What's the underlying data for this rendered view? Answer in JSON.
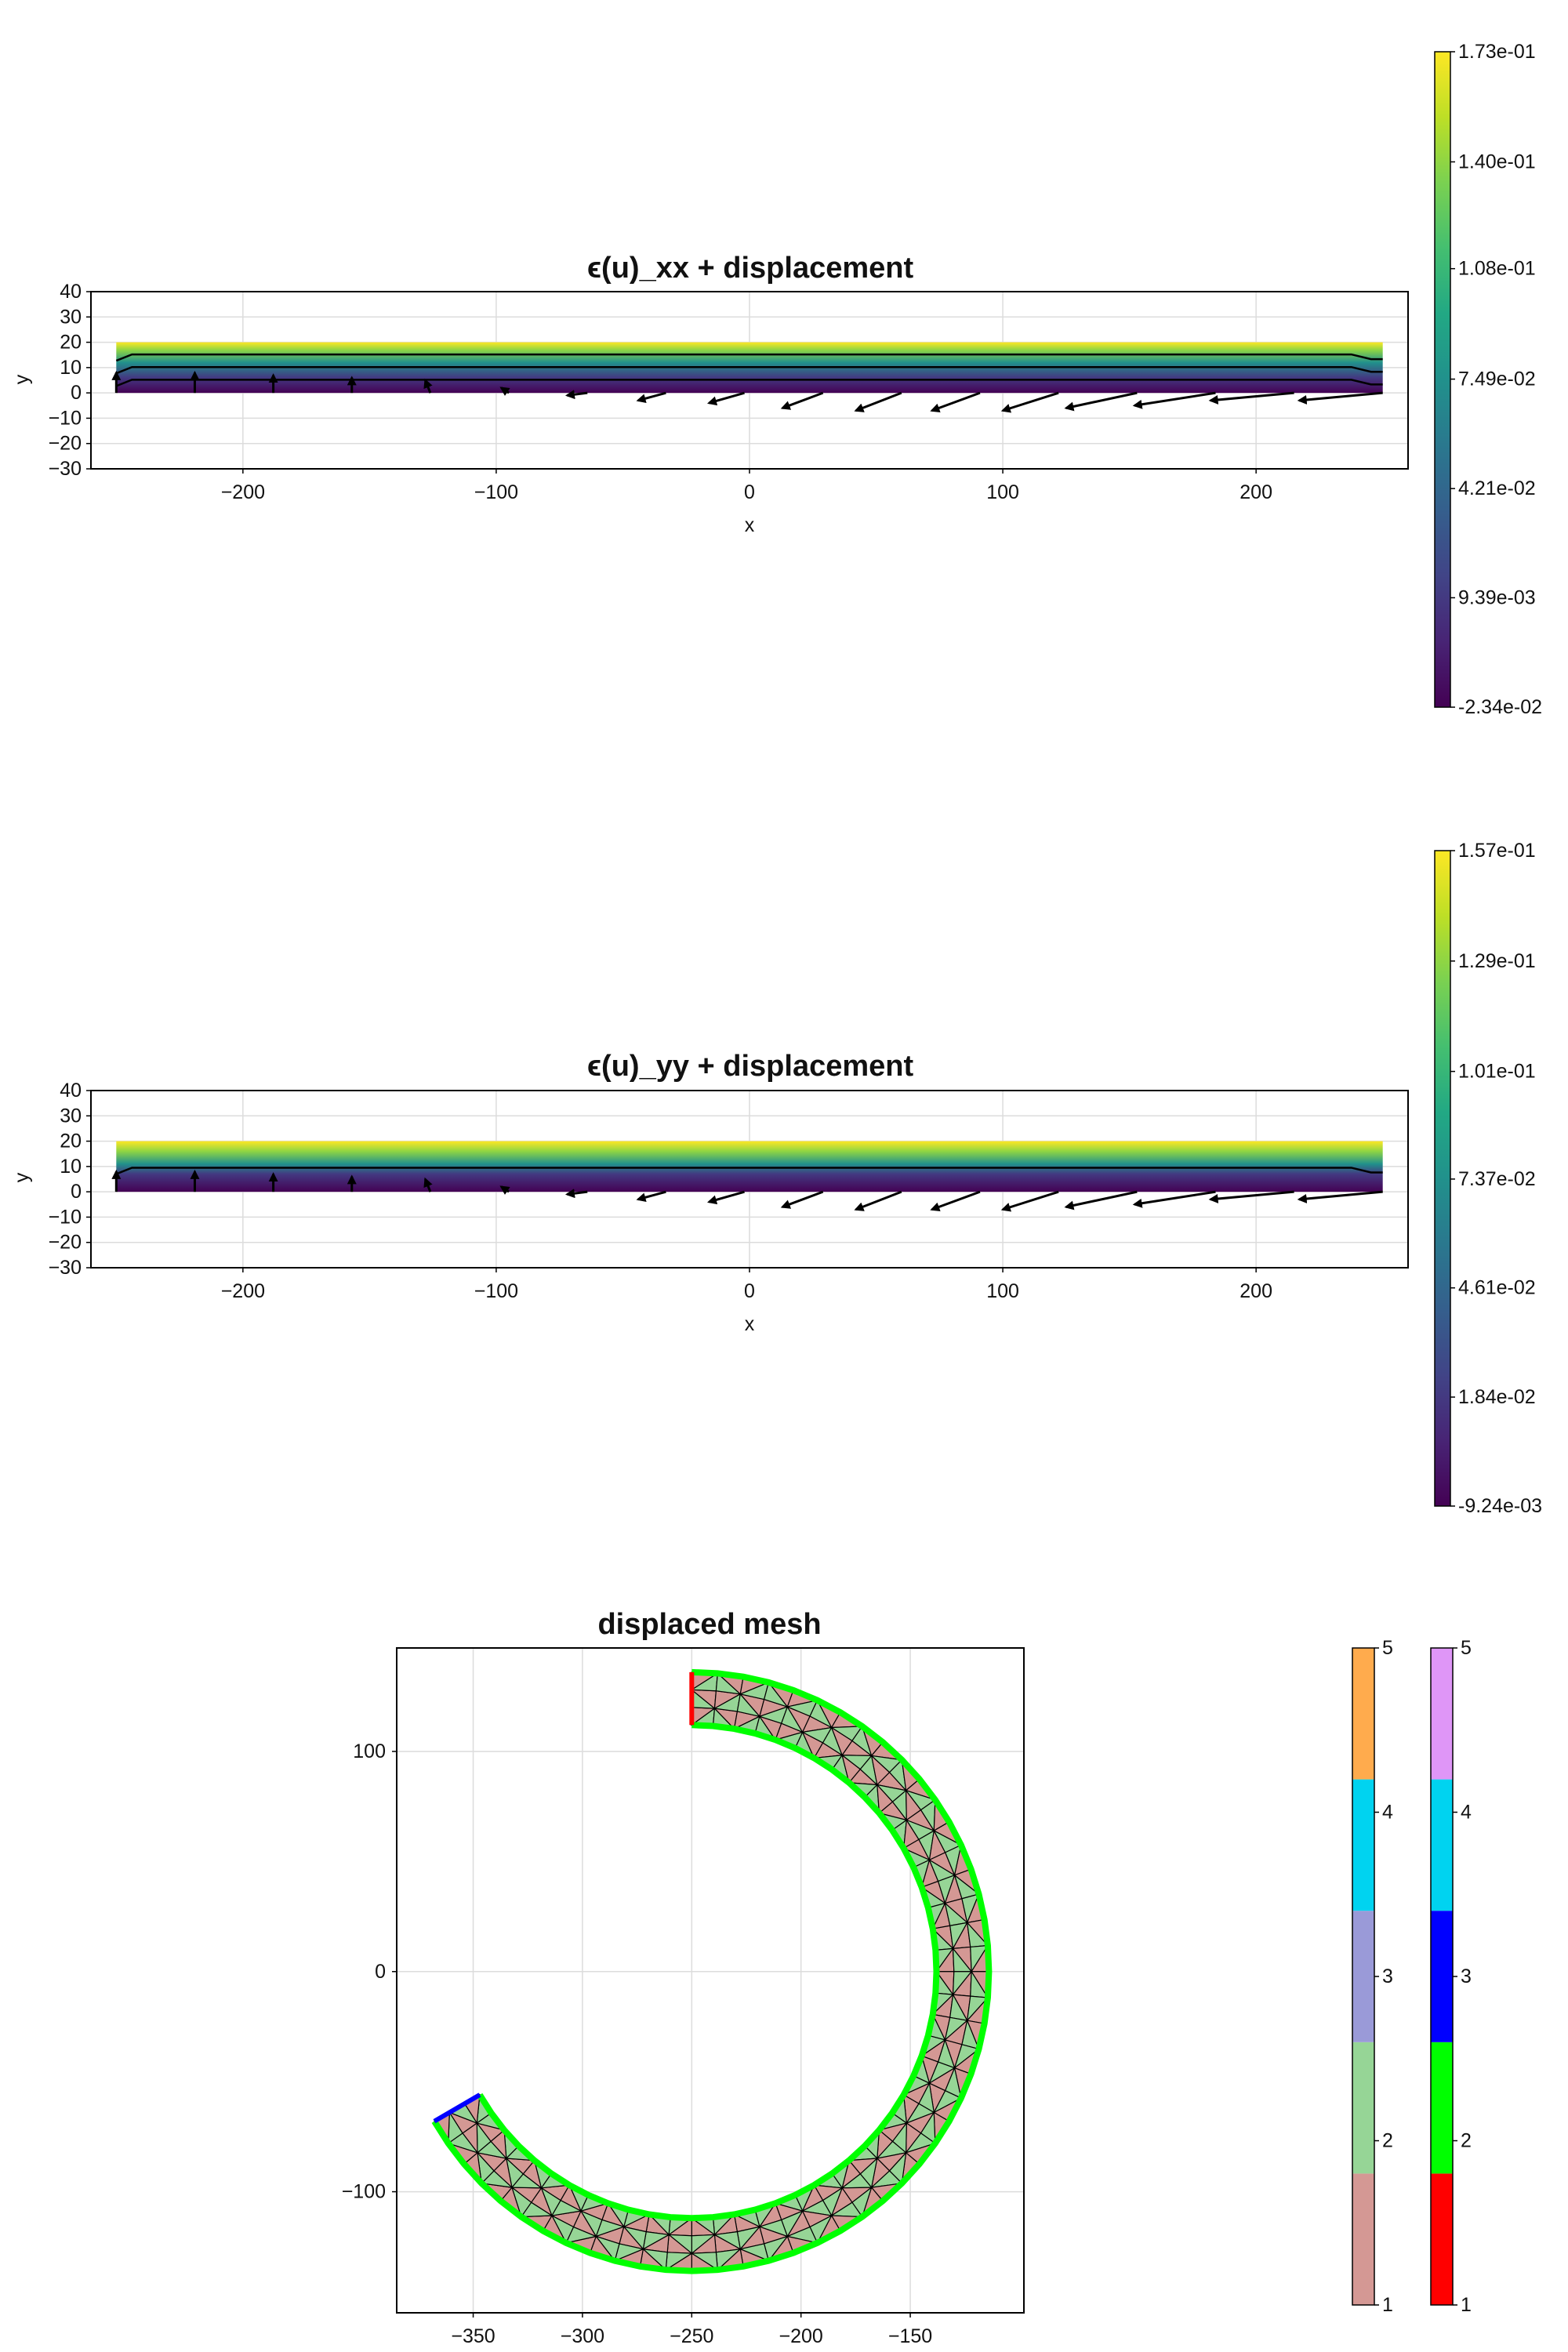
{
  "chart_data": [
    {
      "type": "heatmap",
      "title": "ϵ(u)_xx + displacement",
      "xlabel": "x",
      "ylabel": "y",
      "xlim": [
        -260,
        260
      ],
      "ylim": [
        -30,
        40
      ],
      "xticks": [
        -200,
        -100,
        0,
        100,
        200
      ],
      "xtick_labels": [
        "−200",
        "−100",
        "0",
        "100",
        "200"
      ],
      "yticks": [
        40,
        30,
        20,
        10,
        0,
        -10,
        -20,
        -30
      ],
      "ytick_labels": [
        "40",
        "30",
        "20",
        "10",
        "0",
        "−10",
        "−20",
        "−30"
      ],
      "grid": true,
      "domain": {
        "x": [
          -250,
          250
        ],
        "y": [
          0,
          20
        ]
      },
      "field_stops": [
        {
          "y": 0,
          "value": -0.0234
        },
        {
          "y": 6,
          "value": 0.0094
        },
        {
          "y": 12,
          "value": 0.075
        },
        {
          "y": 17,
          "value": 0.14
        },
        {
          "y": 20,
          "value": 0.173
        }
      ],
      "contour_levels_y": [
        5.2,
        10.2,
        15.2
      ],
      "colorbar": {
        "min": -0.0234,
        "max": 0.173,
        "colormap": "viridis",
        "ticks": [
          -0.0234,
          0.00939,
          0.0421,
          0.0749,
          0.108,
          0.14,
          0.173
        ],
        "tick_labels": [
          "-2.34e-02",
          "9.39e-03",
          "4.21e-02",
          "7.49e-02",
          "1.08e-01",
          "1.40e-01",
          "1.73e-01"
        ]
      },
      "arrows": [
        {
          "x": -250,
          "y": 0,
          "dx": 0,
          "dy": 8
        },
        {
          "x": -219,
          "y": 0,
          "dx": 0,
          "dy": 8
        },
        {
          "x": -188,
          "y": 0,
          "dx": 0,
          "dy": 7
        },
        {
          "x": -157,
          "y": 0,
          "dx": 0,
          "dy": 6
        },
        {
          "x": -126,
          "y": 0,
          "dx": -2,
          "dy": 5
        },
        {
          "x": -95,
          "y": 0,
          "dx": -3,
          "dy": 2
        },
        {
          "x": -64,
          "y": 0,
          "dx": -8,
          "dy": -1
        },
        {
          "x": -33,
          "y": 0,
          "dx": -11,
          "dy": -3
        },
        {
          "x": -2,
          "y": 0,
          "dx": -14,
          "dy": -4
        },
        {
          "x": 29,
          "y": 0,
          "dx": -16,
          "dy": -6
        },
        {
          "x": 60,
          "y": 0,
          "dx": -18,
          "dy": -7
        },
        {
          "x": 91,
          "y": 0,
          "dx": -19,
          "dy": -7
        },
        {
          "x": 122,
          "y": 0,
          "dx": -22,
          "dy": -7
        },
        {
          "x": 153,
          "y": 0,
          "dx": -28,
          "dy": -6
        },
        {
          "x": 184,
          "y": 0,
          "dx": -32,
          "dy": -5
        },
        {
          "x": 215,
          "y": 0,
          "dx": -33,
          "dy": -3
        },
        {
          "x": 250,
          "y": 0,
          "dx": -33,
          "dy": -3
        }
      ]
    },
    {
      "type": "heatmap",
      "title": "ϵ(u)_yy + displacement",
      "xlabel": "x",
      "ylabel": "y",
      "xlim": [
        -260,
        260
      ],
      "ylim": [
        -30,
        40
      ],
      "xticks": [
        -200,
        -100,
        0,
        100,
        200
      ],
      "xtick_labels": [
        "−200",
        "−100",
        "0",
        "100",
        "200"
      ],
      "yticks": [
        40,
        30,
        20,
        10,
        0,
        -10,
        -20,
        -30
      ],
      "ytick_labels": [
        "40",
        "30",
        "20",
        "10",
        "0",
        "−10",
        "−20",
        "−30"
      ],
      "grid": true,
      "domain": {
        "x": [
          -250,
          250
        ],
        "y": [
          0,
          20
        ]
      },
      "field_stops": [
        {
          "y": 0,
          "value": -0.00924
        },
        {
          "y": 7,
          "value": 0.0184
        },
        {
          "y": 11,
          "value": 0.0737
        },
        {
          "y": 16,
          "value": 0.129
        },
        {
          "y": 20,
          "value": 0.157
        }
      ],
      "contour_levels_y": [
        9.5
      ],
      "colorbar": {
        "min": -0.00924,
        "max": 0.157,
        "colormap": "viridis",
        "ticks": [
          -0.00924,
          0.0184,
          0.0461,
          0.0737,
          0.101,
          0.129,
          0.157
        ],
        "tick_labels": [
          "-9.24e-03",
          "1.84e-02",
          "4.61e-02",
          "7.37e-02",
          "1.01e-01",
          "1.29e-01",
          "1.57e-01"
        ]
      },
      "arrows": [
        {
          "x": -250,
          "y": 0,
          "dx": 0,
          "dy": 8
        },
        {
          "x": -219,
          "y": 0,
          "dx": 0,
          "dy": 8
        },
        {
          "x": -188,
          "y": 0,
          "dx": 0,
          "dy": 7
        },
        {
          "x": -157,
          "y": 0,
          "dx": 0,
          "dy": 6
        },
        {
          "x": -126,
          "y": 0,
          "dx": -2,
          "dy": 5
        },
        {
          "x": -95,
          "y": 0,
          "dx": -3,
          "dy": 2
        },
        {
          "x": -64,
          "y": 0,
          "dx": -8,
          "dy": -1
        },
        {
          "x": -33,
          "y": 0,
          "dx": -11,
          "dy": -3
        },
        {
          "x": -2,
          "y": 0,
          "dx": -14,
          "dy": -4
        },
        {
          "x": 29,
          "y": 0,
          "dx": -16,
          "dy": -6
        },
        {
          "x": 60,
          "y": 0,
          "dx": -18,
          "dy": -7
        },
        {
          "x": 91,
          "y": 0,
          "dx": -19,
          "dy": -7
        },
        {
          "x": 122,
          "y": 0,
          "dx": -22,
          "dy": -7
        },
        {
          "x": 153,
          "y": 0,
          "dx": -28,
          "dy": -6
        },
        {
          "x": 184,
          "y": 0,
          "dx": -32,
          "dy": -5
        },
        {
          "x": 215,
          "y": 0,
          "dx": -33,
          "dy": -3
        },
        {
          "x": 250,
          "y": 0,
          "dx": -33,
          "dy": -3
        }
      ]
    },
    {
      "type": "mesh",
      "title": "displaced mesh",
      "xlim": [
        -385,
        -98
      ],
      "ylim": [
        -155,
        147
      ],
      "xticks": [
        -350,
        -300,
        -250,
        -200,
        -150
      ],
      "xtick_labels": [
        "−350",
        "−300",
        "−250",
        "−200",
        "−150"
      ],
      "yticks": [
        100,
        0,
        -100
      ],
      "ytick_labels": [
        "100",
        "0",
        "−100"
      ],
      "grid": true,
      "ring": {
        "center": [
          -250,
          0
        ],
        "inner_radius": 112,
        "outer_radius": 136,
        "start_angle_deg": 90,
        "end_angle_deg": -150,
        "radial_divisions": 3,
        "angular_divisions": 48
      },
      "cell_colors": [
        "#d49894",
        "#96d596"
      ],
      "boundary_colors": {
        "outer": "#00ff00",
        "inner": "#00ff00",
        "start_edge": "#ff0000",
        "end_edge": "#0000ff"
      },
      "colorbars": [
        {
          "ticks": [
            1,
            2,
            3,
            4,
            5
          ],
          "tick_labels": [
            "1",
            "2",
            "3",
            "4",
            "5"
          ],
          "segments": [
            "#d49894",
            "#96d596",
            "#9a9ad8",
            "#00d3f0",
            "#ffab4d"
          ]
        },
        {
          "ticks": [
            1,
            2,
            3,
            4,
            5
          ],
          "tick_labels": [
            "1",
            "2",
            "3",
            "4",
            "5"
          ],
          "segments": [
            "#ff0000",
            "#00ff00",
            "#0000ff",
            "#00d3f0",
            "#df96f7"
          ]
        }
      ]
    }
  ]
}
